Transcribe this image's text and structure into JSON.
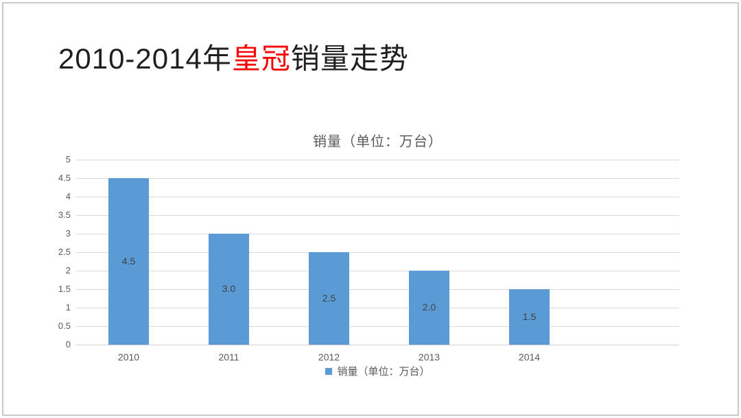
{
  "slide": {
    "title_prefix": "2010-2014年",
    "title_highlight": "皇冠",
    "title_suffix": "销量走势",
    "colors": {
      "title_text": "#1f1f1f",
      "title_highlight": "#ff0000",
      "border": "#c9c9c9"
    }
  },
  "chart_data": {
    "type": "bar",
    "title": "销量（单位：万台）",
    "categories": [
      "2010",
      "2011",
      "2012",
      "2013",
      "2014"
    ],
    "values": [
      4.5,
      3.0,
      2.5,
      2.0,
      1.5
    ],
    "value_labels": [
      "4.5",
      "3.0",
      "2.5",
      "2.0",
      "1.5"
    ],
    "series_name": "销量（单位：万台）",
    "ylim": [
      0,
      5
    ],
    "yticks": [
      0,
      0.5,
      1,
      1.5,
      2,
      2.5,
      3,
      3.5,
      4,
      4.5,
      5
    ],
    "ytick_labels": [
      "0",
      "0.5",
      "1",
      "1.5",
      "2",
      "2.5",
      "3",
      "3.5",
      "4",
      "4.5",
      "5"
    ],
    "grid": true,
    "legend_position": "bottom",
    "colors": {
      "bar": "#5b9bd5",
      "gridline": "#d9d9d9",
      "axis_line": "#cfcfcf",
      "tick_label": "#595959",
      "value_label": "#404040",
      "chart_title": "#595959"
    }
  }
}
